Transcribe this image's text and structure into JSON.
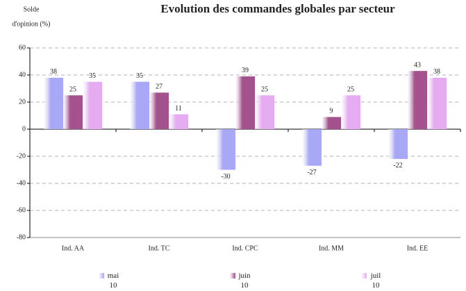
{
  "chart_data": {
    "type": "bar",
    "title": "Evolution des commandes globales par secteur",
    "y_label": [
      "Solde",
      "d'opinion (%)"
    ],
    "categories": [
      "Ind. AA",
      "Ind. TC",
      "Ind. CPC",
      "Ind. MM",
      "Ind. EE"
    ],
    "series": [
      {
        "name": "mai 10",
        "color": "#a8a8f6",
        "values": [
          38,
          35,
          -30,
          -27,
          -22
        ]
      },
      {
        "name": "juin 10",
        "color": "#a3528d",
        "values": [
          25,
          27,
          39,
          9,
          43
        ]
      },
      {
        "name": "juil 10",
        "color": "#e6acf2",
        "values": [
          35,
          11,
          25,
          25,
          38
        ]
      }
    ],
    "ylim": [
      -80,
      60
    ],
    "yticks": [
      -80,
      -60,
      -40,
      -20,
      0,
      20,
      40,
      60
    ],
    "grid": true
  }
}
